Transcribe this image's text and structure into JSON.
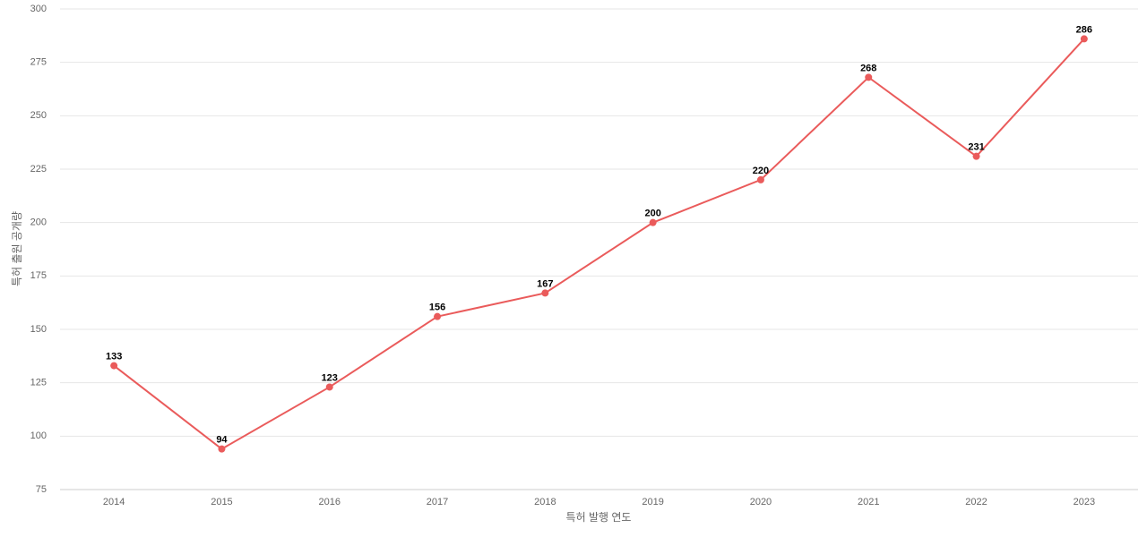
{
  "chart_data": {
    "type": "line",
    "x_label": "특허 발행 연도",
    "y_label": "특허 출원 공개량",
    "categories": [
      "2014",
      "2015",
      "2016",
      "2017",
      "2018",
      "2019",
      "2020",
      "2021",
      "2022",
      "2023"
    ],
    "series": [
      {
        "color": "#ea5b5b",
        "values": [
          133,
          94,
          123,
          156,
          167,
          200,
          220,
          268,
          231,
          286
        ]
      }
    ],
    "ylim": [
      75,
      300
    ],
    "yticks": [
      75,
      100,
      125,
      150,
      175,
      200,
      225,
      250,
      275,
      300
    ],
    "grid": true
  }
}
